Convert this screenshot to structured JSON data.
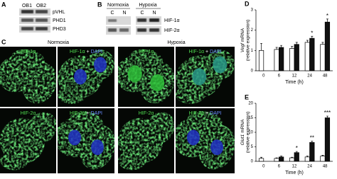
{
  "panel_a": {
    "letter": "A",
    "lanes": [
      "OB1",
      "OB2"
    ],
    "bands": [
      "pVHL",
      "PHD1",
      "PHD3"
    ]
  },
  "panel_b": {
    "letter": "B",
    "groups": [
      "Normoxia",
      "Hypoxia"
    ],
    "lanes": [
      "C",
      "N",
      "C",
      "N"
    ],
    "bands": [
      "HIF-1α",
      "HIF-2α"
    ]
  },
  "panel_c": {
    "letter": "C",
    "conditions": [
      "Normoxia",
      "Hypoxia"
    ],
    "rows": [
      {
        "stain": "HIF-1α",
        "plus": "+",
        "dapi": "DAPI"
      },
      {
        "stain": "HIF-2α",
        "plus": "+",
        "dapi": "DAPI"
      }
    ]
  },
  "chart_data": [
    {
      "type": "bar",
      "letter": "D",
      "gene": "Vegf",
      "ylabel": "mRNA",
      "ylabel_sub": "(relative expression)",
      "xlabel": "Time (h)",
      "categories": [
        "0",
        "6",
        "12",
        "24",
        "48"
      ],
      "ylim": [
        0,
        3
      ],
      "yticks": [
        0,
        1,
        2,
        3
      ],
      "series": [
        {
          "color": "#ffffff",
          "values": [
            1.0,
            1.05,
            1.1,
            1.4,
            1.3
          ],
          "errors": [
            0.35,
            0.1,
            0.1,
            0.1,
            0.1
          ]
        },
        {
          "color": "#111111",
          "values": [
            null,
            1.15,
            1.3,
            1.6,
            2.4
          ],
          "errors": [
            null,
            0.1,
            0.1,
            0.1,
            0.15
          ],
          "significance": [
            null,
            null,
            null,
            "*",
            "*"
          ]
        }
      ]
    },
    {
      "type": "bar",
      "letter": "E",
      "gene": "Glut1",
      "ylabel": "mRNA",
      "ylabel_sub": "(relative expression)",
      "xlabel": "Time (h)",
      "categories": [
        "0",
        "6",
        "12",
        "24",
        "48"
      ],
      "ylim": [
        0,
        20
      ],
      "yticks": [
        0,
        5,
        10,
        15,
        20
      ],
      "series": [
        {
          "color": "#ffffff",
          "values": [
            1.0,
            1.0,
            1.2,
            1.5,
            1.8
          ],
          "errors": [
            0.4,
            0.2,
            0.2,
            0.3,
            0.3
          ]
        },
        {
          "color": "#111111",
          "values": [
            null,
            1.5,
            3.0,
            6.5,
            15.0
          ],
          "errors": [
            null,
            0.3,
            0.4,
            0.5,
            0.6
          ],
          "significance": [
            null,
            null,
            "*",
            "**",
            "***"
          ]
        }
      ]
    }
  ]
}
